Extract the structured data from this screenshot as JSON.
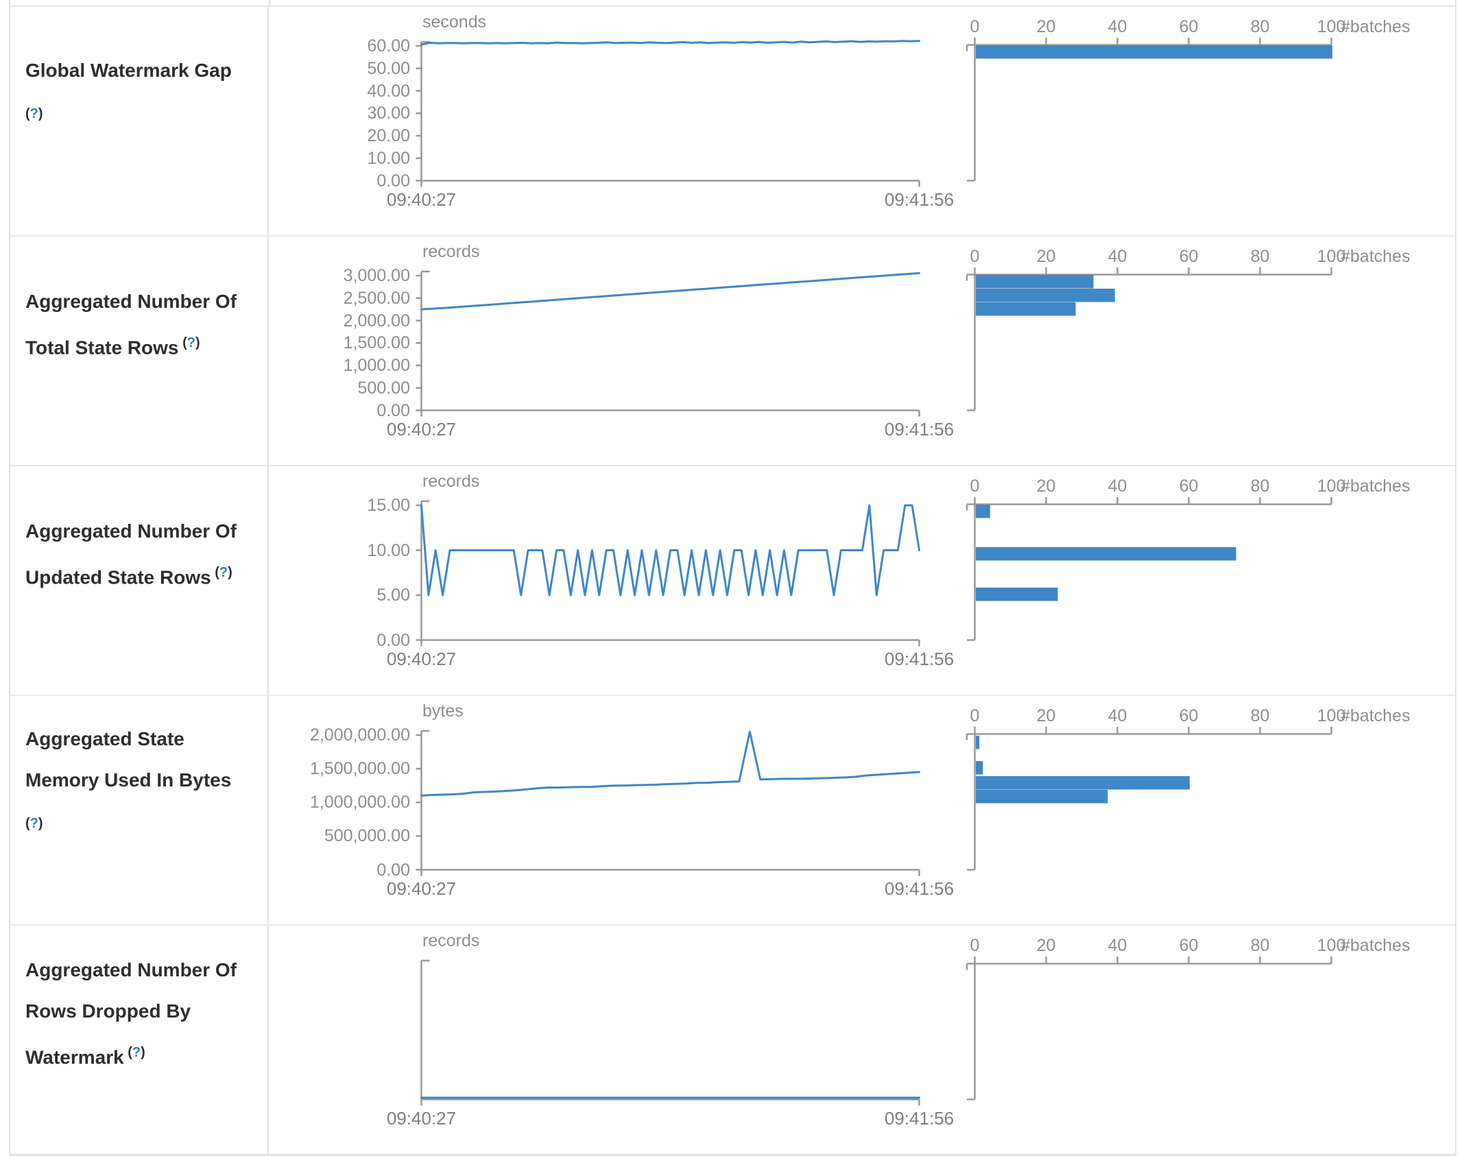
{
  "colors": {
    "accent": "#3f87c6",
    "axis": "#999999",
    "tick_text": "#8e8e8e",
    "time_text": "#7f7f7f",
    "border": "#e3e3e3"
  },
  "table": {
    "rows": [
      {
        "title": "Global Watermark Gap",
        "help": "?",
        "timeline": {
          "unit": "seconds",
          "y_ticks": [
            "60.00",
            "50.00",
            "40.00",
            "30.00",
            "20.00",
            "10.00",
            "0.00"
          ],
          "y_max": 60,
          "x_start": "09:40:27",
          "x_end": "09:41:56",
          "points": [
            60.6,
            61.4,
            61.2,
            61.3,
            61.3,
            61.2,
            61.3,
            61.3,
            61.2,
            61.3,
            61.2,
            61.3,
            61.4,
            61.2,
            61.3,
            61.2,
            61.5,
            61.3,
            61.3,
            61.2,
            61.3,
            61.4,
            61.6,
            61.3,
            61.4,
            61.5,
            61.3,
            61.6,
            61.4,
            61.3,
            61.5,
            61.7,
            61.4,
            61.6,
            61.3,
            61.5,
            61.6,
            61.4,
            61.7,
            61.5,
            61.8,
            61.4,
            61.6,
            61.8,
            61.5,
            61.9,
            61.6,
            61.8,
            62.0,
            61.7,
            61.9,
            62.1,
            61.8,
            62.0,
            61.9,
            62.1,
            62.0,
            62.2,
            62.1,
            62.2
          ]
        },
        "histogram": {
          "x_ticks": [
            "0",
            "20",
            "40",
            "60",
            "80",
            "100"
          ],
          "x_label": "#batches",
          "x_max": 100,
          "bars": [
            {
              "offset": 1,
              "count": 100
            }
          ]
        }
      },
      {
        "title": "Aggregated Number Of Total State Rows",
        "help": "?",
        "timeline": {
          "unit": "records",
          "y_ticks": [
            "3,000.00",
            "2,500.00",
            "2,000.00",
            "1,500.00",
            "1,000.00",
            "500.00",
            "0.00"
          ],
          "y_max": 3000,
          "x_start": "09:40:27",
          "x_end": "09:41:56",
          "points": [
            2250,
            2270,
            2295,
            2320,
            2345,
            2372,
            2398,
            2425,
            2452,
            2478,
            2505,
            2530,
            2558,
            2585,
            2610,
            2638,
            2662,
            2690,
            2715,
            2742,
            2768,
            2795,
            2820,
            2848,
            2872,
            2900,
            2925,
            2952,
            2978,
            3005,
            3030,
            3055
          ]
        },
        "histogram": {
          "x_ticks": [
            "0",
            "20",
            "40",
            "60",
            "80",
            "100"
          ],
          "x_label": "#batches",
          "x_max": 100,
          "bars": [
            {
              "offset": 1,
              "count": 33
            },
            {
              "offset": 21,
              "count": 39
            },
            {
              "offset": 41,
              "count": 28
            }
          ]
        }
      },
      {
        "title": "Aggregated Number Of Updated State Rows",
        "help": "?",
        "timeline": {
          "unit": "records",
          "y_ticks": [
            "15.00",
            "10.00",
            "5.00",
            "0.00"
          ],
          "y_max": 15,
          "x_start": "09:40:27",
          "x_end": "09:41:56",
          "points": [
            15,
            5,
            10,
            5,
            10,
            10,
            10,
            10,
            10,
            10,
            10,
            10,
            10,
            10,
            5,
            10,
            10,
            10,
            5,
            10,
            10,
            5,
            10,
            5,
            10,
            5,
            10,
            10,
            5,
            10,
            5,
            10,
            5,
            10,
            5,
            10,
            10,
            5,
            10,
            5,
            10,
            5,
            10,
            5,
            10,
            10,
            5,
            10,
            5,
            10,
            5,
            10,
            5,
            10,
            10,
            10,
            10,
            10,
            5,
            10,
            10,
            10,
            10,
            15,
            5,
            10,
            10,
            10,
            15,
            15,
            10
          ]
        },
        "histogram": {
          "x_ticks": [
            "0",
            "20",
            "40",
            "60",
            "80",
            "100"
          ],
          "x_label": "#batches",
          "x_max": 100,
          "bars": [
            {
              "offset": 1,
              "count": 4
            },
            {
              "offset": 63,
              "count": 73
            },
            {
              "offset": 122,
              "count": 23
            }
          ]
        }
      },
      {
        "title": "Aggregated State Memory Used In Bytes",
        "help": "?",
        "timeline": {
          "unit": "bytes",
          "y_ticks": [
            "2,000,000.00",
            "1,500,000.00",
            "1,000,000.00",
            "500,000.00",
            "0.00"
          ],
          "y_max": 2000000,
          "x_start": "09:40:27",
          "x_end": "09:41:56",
          "points": [
            1100000,
            1110000,
            1115000,
            1120000,
            1130000,
            1150000,
            1155000,
            1160000,
            1170000,
            1180000,
            1195000,
            1210000,
            1220000,
            1220000,
            1225000,
            1228000,
            1230000,
            1240000,
            1248000,
            1250000,
            1255000,
            1258000,
            1262000,
            1270000,
            1275000,
            1280000,
            1290000,
            1292000,
            1300000,
            1305000,
            1310000,
            2050000,
            1340000,
            1345000,
            1350000,
            1350000,
            1352000,
            1355000,
            1360000,
            1365000,
            1370000,
            1380000,
            1400000,
            1410000,
            1420000,
            1430000,
            1440000,
            1450000
          ]
        },
        "histogram": {
          "x_ticks": [
            "0",
            "20",
            "40",
            "60",
            "80",
            "100"
          ],
          "x_label": "#batches",
          "x_max": 100,
          "bars": [
            {
              "offset": 3,
              "count": 1
            },
            {
              "offset": 40,
              "count": 2
            },
            {
              "offset": 62,
              "count": 60
            },
            {
              "offset": 82,
              "count": 37
            }
          ]
        }
      },
      {
        "title": "Aggregated Number Of Rows Dropped By Watermark",
        "help": "?",
        "timeline": {
          "unit": "records",
          "y_ticks": [],
          "y_max": 1,
          "x_start": "09:40:27",
          "x_end": "09:41:56",
          "points": [
            0,
            0,
            0,
            0,
            0,
            0,
            0,
            0,
            0,
            0
          ]
        },
        "histogram": {
          "x_ticks": [
            "0",
            "20",
            "40",
            "60",
            "80",
            "100"
          ],
          "x_label": "#batches",
          "x_max": 100,
          "bars": []
        }
      }
    ]
  }
}
